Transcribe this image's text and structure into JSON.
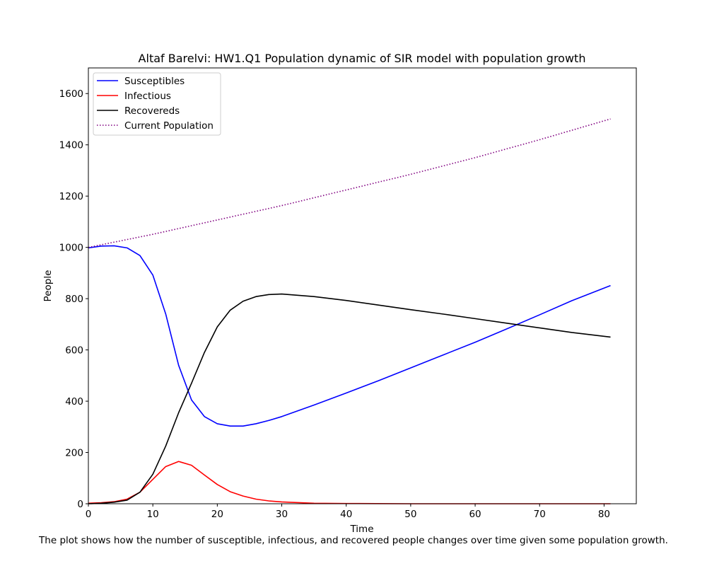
{
  "chart_data": {
    "type": "line",
    "title": "Altaf Barelvi: HW1.Q1 Population dynamic of SIR model with population growth",
    "xlabel": "Time",
    "ylabel": "People",
    "caption": "The plot shows how the number of susceptible, infectious, and recovered people changes over time given some population growth.",
    "xlim": [
      0,
      85
    ],
    "ylim": [
      0,
      1700
    ],
    "xticks": [
      0,
      10,
      20,
      30,
      40,
      50,
      60,
      70,
      80
    ],
    "yticks": [
      0,
      200,
      400,
      600,
      800,
      1000,
      1200,
      1400,
      1600
    ],
    "grid": false,
    "legend_position": "top-left",
    "series": [
      {
        "name": "Susceptibles",
        "color": "#0000ff",
        "style": "solid",
        "points": [
          [
            0,
            998
          ],
          [
            2,
            1005
          ],
          [
            4,
            1006
          ],
          [
            6,
            998
          ],
          [
            8,
            968
          ],
          [
            10,
            892
          ],
          [
            12,
            740
          ],
          [
            14,
            540
          ],
          [
            16,
            405
          ],
          [
            18,
            340
          ],
          [
            20,
            312
          ],
          [
            22,
            303
          ],
          [
            24,
            303
          ],
          [
            26,
            312
          ],
          [
            28,
            325
          ],
          [
            30,
            340
          ],
          [
            35,
            385
          ],
          [
            40,
            432
          ],
          [
            45,
            480
          ],
          [
            50,
            530
          ],
          [
            55,
            580
          ],
          [
            60,
            630
          ],
          [
            65,
            683
          ],
          [
            70,
            737
          ],
          [
            75,
            792
          ],
          [
            81,
            851
          ]
        ]
      },
      {
        "name": "Infectious",
        "color": "#ff0000",
        "style": "solid",
        "points": [
          [
            0,
            2
          ],
          [
            2,
            4
          ],
          [
            4,
            8
          ],
          [
            6,
            18
          ],
          [
            8,
            45
          ],
          [
            10,
            95
          ],
          [
            12,
            145
          ],
          [
            14,
            165
          ],
          [
            16,
            150
          ],
          [
            18,
            112
          ],
          [
            20,
            75
          ],
          [
            22,
            47
          ],
          [
            24,
            30
          ],
          [
            26,
            18
          ],
          [
            28,
            11
          ],
          [
            30,
            7
          ],
          [
            35,
            2
          ],
          [
            40,
            1
          ],
          [
            50,
            0
          ],
          [
            60,
            0
          ],
          [
            70,
            0
          ],
          [
            81,
            0
          ]
        ]
      },
      {
        "name": "Recovereds",
        "color": "#000000",
        "style": "solid",
        "points": [
          [
            0,
            0
          ],
          [
            2,
            2
          ],
          [
            4,
            6
          ],
          [
            6,
            14
          ],
          [
            8,
            45
          ],
          [
            10,
            115
          ],
          [
            12,
            225
          ],
          [
            14,
            355
          ],
          [
            16,
            470
          ],
          [
            18,
            590
          ],
          [
            20,
            690
          ],
          [
            22,
            755
          ],
          [
            24,
            790
          ],
          [
            26,
            808
          ],
          [
            28,
            816
          ],
          [
            30,
            818
          ],
          [
            35,
            808
          ],
          [
            40,
            793
          ],
          [
            45,
            775
          ],
          [
            50,
            757
          ],
          [
            55,
            740
          ],
          [
            60,
            722
          ],
          [
            65,
            704
          ],
          [
            70,
            686
          ],
          [
            75,
            668
          ],
          [
            81,
            650
          ]
        ]
      },
      {
        "name": "Current Population",
        "color": "#800080",
        "style": "dotted",
        "points": [
          [
            0,
            1000
          ],
          [
            10,
            1051
          ],
          [
            20,
            1107
          ],
          [
            30,
            1163
          ],
          [
            40,
            1224
          ],
          [
            50,
            1285
          ],
          [
            60,
            1350
          ],
          [
            70,
            1420
          ],
          [
            81,
            1501
          ]
        ]
      }
    ]
  }
}
